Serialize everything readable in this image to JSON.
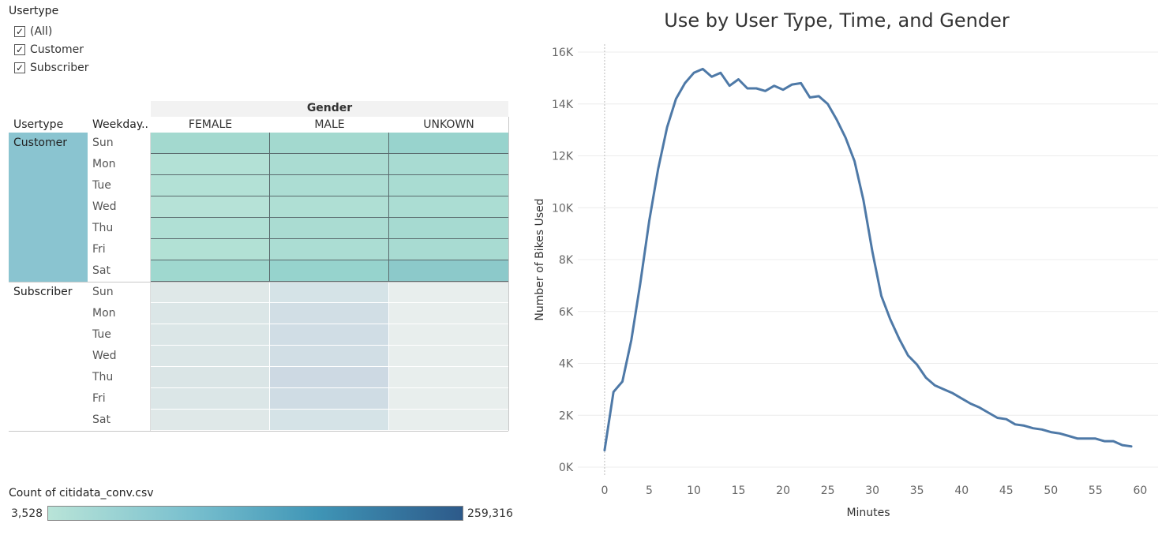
{
  "filter": {
    "title": "Usertype",
    "options": [
      {
        "label": "(All)",
        "checked": true
      },
      {
        "label": "Customer",
        "checked": true
      },
      {
        "label": "Subscriber",
        "checked": true
      }
    ]
  },
  "heatmap": {
    "column_group_title": "Gender",
    "row_header_usertype": "Usertype",
    "row_header_weekday": "Weekday..",
    "columns": [
      "FEMALE",
      "MALE",
      "UNKOWN"
    ],
    "groups": [
      {
        "label": "Customer",
        "label_bg": "#8ac4d0",
        "rows": [
          {
            "day": "Sun",
            "colors": [
              "#a3d9cf",
              "#a3d9cf",
              "#98d3cd"
            ]
          },
          {
            "day": "Mon",
            "colors": [
              "#b3e1d6",
              "#aadcd2",
              "#a8dbd2"
            ]
          },
          {
            "day": "Tue",
            "colors": [
              "#b3e1d6",
              "#acddd3",
              "#a9dcd2"
            ]
          },
          {
            "day": "Wed",
            "colors": [
              "#b6e2d7",
              "#afdfd4",
              "#abddd3"
            ]
          },
          {
            "day": "Thu",
            "colors": [
              "#b0e0d5",
              "#aadcd2",
              "#a6dad1"
            ]
          },
          {
            "day": "Fri",
            "colors": [
              "#b2e1d5",
              "#abddd3",
              "#a8dbd2"
            ]
          },
          {
            "day": "Sat",
            "colors": [
              "#9fd8cf",
              "#96d3cd",
              "#8cc9ca"
            ]
          }
        ]
      },
      {
        "label": "Subscriber",
        "label_bg": "#ffffff",
        "rows": [
          {
            "day": "Sun",
            "colors": [
              "#dfe8e8",
              "#d5e3e7",
              "#e8eeed"
            ]
          },
          {
            "day": "Mon",
            "colors": [
              "#dbe6e7",
              "#d1dee5",
              "#e8eeed"
            ]
          },
          {
            "day": "Tue",
            "colors": [
              "#dbe6e7",
              "#d0dde5",
              "#e8eeed"
            ]
          },
          {
            "day": "Wed",
            "colors": [
              "#dbe6e7",
              "#d1dee5",
              "#e8eeed"
            ]
          },
          {
            "day": "Thu",
            "colors": [
              "#dae5e6",
              "#cdd9e3",
              "#e8eeed"
            ]
          },
          {
            "day": "Fri",
            "colors": [
              "#dbe6e7",
              "#cfdce4",
              "#e8eeed"
            ]
          },
          {
            "day": "Sat",
            "colors": [
              "#dfe8e8",
              "#d5e3e7",
              "#e8eeed"
            ]
          }
        ]
      }
    ]
  },
  "legend": {
    "title": "Count of citidata_conv.csv",
    "min_label": "3,528",
    "max_label": "259,316",
    "color_low": "#b9e4d8",
    "color_high": "#2d5a8a"
  },
  "chart_data": {
    "type": "line",
    "title": "Use by User Type, Time, and Gender",
    "xlabel": "Minutes",
    "ylabel": "Number of Bikes Used",
    "xlim": [
      -3,
      62
    ],
    "ylim": [
      0,
      16000
    ],
    "x_ticks": [
      0,
      5,
      10,
      15,
      20,
      25,
      30,
      35,
      40,
      45,
      50,
      55,
      60
    ],
    "y_ticks": [
      0,
      2000,
      4000,
      6000,
      8000,
      10000,
      12000,
      14000,
      16000
    ],
    "y_tick_labels": [
      "0K",
      "2K",
      "4K",
      "6K",
      "8K",
      "10K",
      "12K",
      "14K",
      "16K"
    ],
    "grid": "horizontal",
    "line_color": "#4e79a7",
    "series": [
      {
        "x": [
          0,
          1,
          2,
          3,
          4,
          5,
          6,
          7,
          8,
          9,
          10,
          11,
          12,
          13,
          14,
          15,
          16,
          17,
          18,
          19,
          20,
          21,
          22,
          23,
          24,
          25,
          26,
          27,
          28,
          29,
          30,
          31,
          32,
          33,
          34,
          35,
          36,
          37,
          38,
          39,
          40,
          41,
          42,
          43,
          44,
          45,
          46,
          47,
          48,
          49,
          50,
          51,
          52,
          53,
          54,
          55,
          56,
          57,
          58,
          59
        ],
        "values": [
          650,
          2900,
          3300,
          4900,
          7100,
          9500,
          11500,
          13100,
          14200,
          14800,
          15200,
          15350,
          15050,
          15200,
          14700,
          14950,
          14600,
          14600,
          14500,
          14700,
          14550,
          14750,
          14800,
          14250,
          14300,
          14000,
          13400,
          12700,
          11800,
          10300,
          8300,
          6600,
          5700,
          4950,
          4300,
          3950,
          3450,
          3150,
          3000,
          2850,
          2650,
          2450,
          2300,
          2100,
          1900,
          1850,
          1650,
          1600,
          1500,
          1450,
          1350,
          1300,
          1200,
          1100,
          1100,
          1100,
          1000,
          1000,
          850,
          800
        ]
      }
    ]
  }
}
